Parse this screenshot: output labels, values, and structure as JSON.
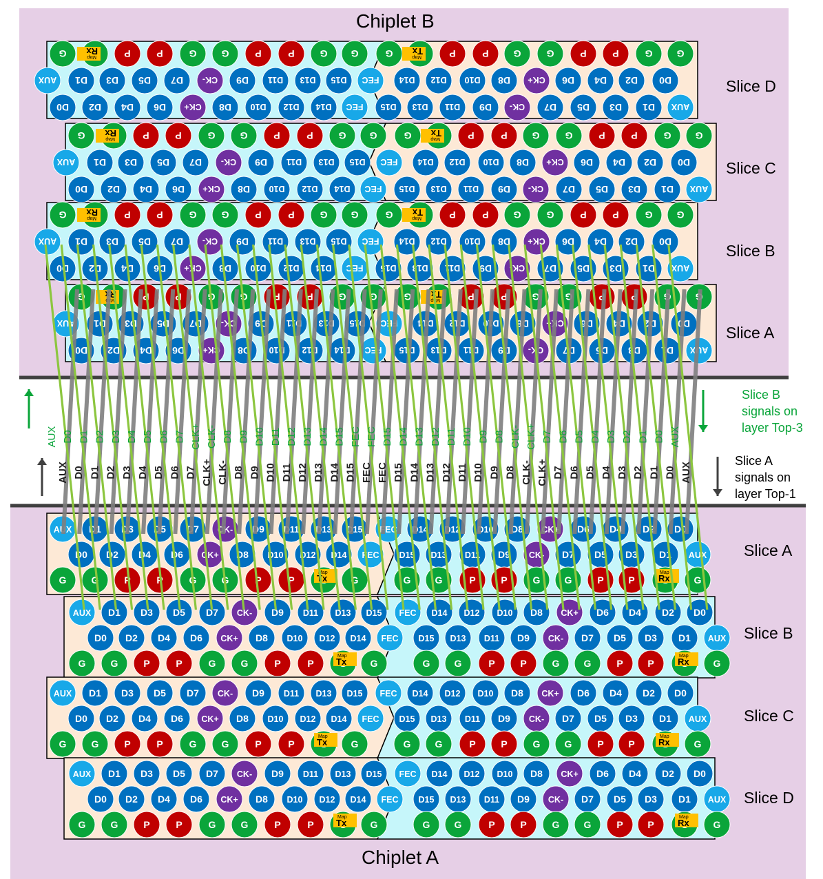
{
  "titles": {
    "top": "Chiplet B",
    "bottom": "Chiplet A"
  },
  "slice_labels": {
    "top": [
      "Slice D",
      "Slice C",
      "Slice B",
      "Slice A"
    ],
    "bottom": [
      "Slice A",
      "Slice B",
      "Slice C",
      "Slice D"
    ]
  },
  "notes": {
    "slice_b": [
      "Slice B",
      "signals on",
      "layer Top-3"
    ],
    "slice_a": [
      "Slice A",
      "signals on",
      "layer Top-1"
    ]
  },
  "signal_labels": {
    "green": [
      "AUX",
      "D0",
      "D1",
      "D2",
      "D3",
      "D4",
      "D5",
      "D6",
      "D7",
      "CLK+",
      "CLK-",
      "D8",
      "D9",
      "D10",
      "D11",
      "D12",
      "D13",
      "D14",
      "D15",
      "FEC",
      "FEC",
      "D15",
      "D14",
      "D13",
      "D12",
      "D11",
      "D10",
      "D9",
      "D8",
      "CLK-",
      "CLK+",
      "D7",
      "D6",
      "D5",
      "D4",
      "D3",
      "D2",
      "D1",
      "D0",
      "AUX"
    ],
    "black": [
      "AUX",
      "D0",
      "D1",
      "D2",
      "D3",
      "D4",
      "D5",
      "D6",
      "D7",
      "CLK+",
      "CLK-",
      "D8",
      "D9",
      "D10",
      "D11",
      "D12",
      "D13",
      "D14",
      "D15",
      "FEC",
      "FEC",
      "D15",
      "D14",
      "D13",
      "D12",
      "D11",
      "D10",
      "D9",
      "D8",
      "CLK-",
      "CLK+",
      "D7",
      "D6",
      "D5",
      "D4",
      "D3",
      "D2",
      "D1",
      "D0",
      "AUX"
    ]
  },
  "bump_rows": {
    "a_row1": [
      "AUX",
      "D1",
      "D3",
      "D5",
      "D7",
      "CK-",
      "D9",
      "D11",
      "D13",
      "D15",
      "FEC",
      "D14",
      "D12",
      "D10",
      "D8",
      "CK+",
      "D6",
      "D4",
      "D2",
      "D0"
    ],
    "a_row2": [
      "D0",
      "D2",
      "D4",
      "D6",
      "CK+",
      "D8",
      "D10",
      "D12",
      "D14",
      "FEC",
      "D15",
      "D13",
      "D11",
      "D9",
      "CK-",
      "D7",
      "D5",
      "D3",
      "D1",
      "AUX"
    ],
    "a_row3": [
      "G",
      "G",
      "P",
      "P",
      "G",
      "G",
      "P",
      "P",
      "G",
      "G",
      "G",
      "G",
      "P",
      "P",
      "G",
      "G",
      "P",
      "P",
      "G",
      "G"
    ]
  },
  "map_marker": {
    "tag": "Map",
    "tx": "Tx",
    "rx": "Rx"
  },
  "colors": {
    "green": "#0aa53a",
    "blue": "#0070c0",
    "cyan": "#18a8e8",
    "purple": "#7030a0",
    "red": "#c00000",
    "pink": "#e6cfe6",
    "peach": "#fde9d6",
    "aqua": "#c6f6fa",
    "olive": "#8cc63f",
    "trace_grey": "#7f7f7f",
    "marker": "#ffc000"
  }
}
